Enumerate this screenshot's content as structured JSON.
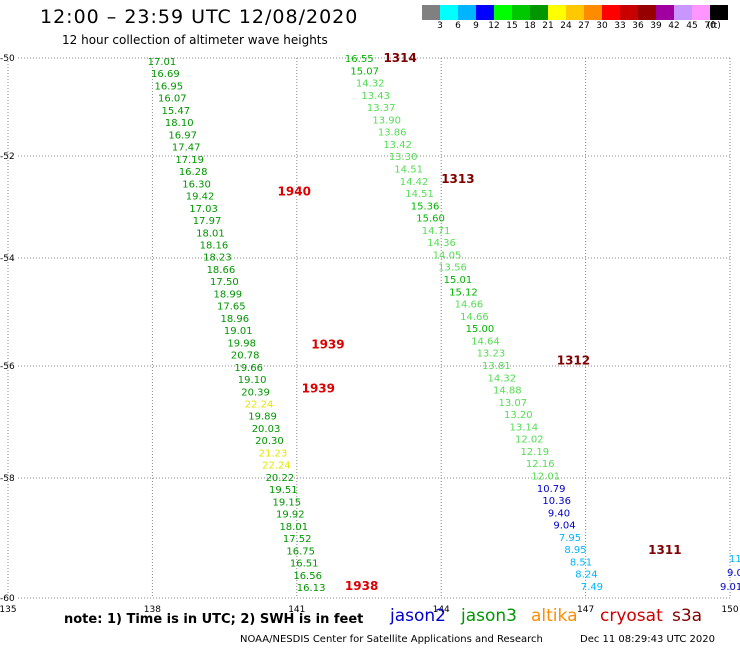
{
  "header": {
    "title": "12:00 – 23:59 UTC 12/08/2020",
    "subtitle": "12 hour collection of altimeter wave heights"
  },
  "scale": {
    "colors": [
      "#808080",
      "#00ffff",
      "#00b4ff",
      "#0000ff",
      "#00ff00",
      "#00c800",
      "#009600",
      "#ffff00",
      "#ffc800",
      "#ff8c00",
      "#ff0000",
      "#c80000",
      "#960000",
      "#a000a0",
      "#c896ff",
      "#ff96ff",
      "#000000"
    ],
    "labels": [
      "3",
      "6",
      "9",
      "12",
      "15",
      "18",
      "21",
      "24",
      "27",
      "30",
      "33",
      "36",
      "39",
      "42",
      "45",
      "70",
      "(ft)"
    ]
  },
  "axes": {
    "x_ticks": [
      "135",
      "138",
      "141",
      "144",
      "147",
      "150"
    ],
    "y_ticks": [
      "-50",
      "-52",
      "-54",
      "-56",
      "-58",
      "-60"
    ]
  },
  "chart_data": {
    "type": "scatter",
    "xlim": [
      135,
      150
    ],
    "ylim": [
      -60,
      -50
    ],
    "grid": true,
    "units": "ft",
    "tracks": [
      {
        "satellite": "jason3",
        "label_points": [
          {
            "text": "1940",
            "lon": 140.6,
            "lat": -52.7
          },
          {
            "text": "1939",
            "lon": 141.3,
            "lat": -55.6
          },
          {
            "text": "1939",
            "lon": 141.1,
            "lat": -56.4
          },
          {
            "text": "1938",
            "lon": 142.0,
            "lat": -59.8
          }
        ],
        "lon_start": 137.9,
        "lat_start": -50.05,
        "lon_end": 141.0,
        "lat_end": -59.8,
        "values": [
          "17.01",
          "16.69",
          "16.95",
          "16.07",
          "15.47",
          "18.10",
          "16.97",
          "17.47",
          "17.19",
          "16.28",
          "16.30",
          "19.42",
          "17.03",
          "17.97",
          "18.01",
          "18.16",
          "18.23",
          "18.66",
          "17.50",
          "18.99",
          "17.65",
          "18.96",
          "19.01",
          "19.98",
          "20.78",
          "19.66",
          "19.10",
          "20.39",
          "22.24",
          "19.89",
          "20.03",
          "20.30",
          "21.23",
          "22.24",
          "20.22",
          "19.51",
          "19.15",
          "19.92",
          "18.01",
          "17.52",
          "16.75",
          "16.51",
          "16.56",
          "16.13"
        ]
      },
      {
        "satellite": "jason3",
        "label_points": [
          {
            "text": "1314",
            "lon": 142.8,
            "lat": -50.0
          },
          {
            "text": "1313",
            "lon": 144.0,
            "lat": -52.45
          },
          {
            "text": "1312",
            "lon": 146.4,
            "lat": -55.9
          },
          {
            "text": "1311",
            "lon": 148.3,
            "lat": -59.2
          }
        ],
        "lon_start": 142.0,
        "lat_start": -50.0,
        "lon_end": 146.9,
        "lat_end": -59.7,
        "values": [
          "16.55",
          "15.07",
          "14.32",
          "13.43",
          "13.37",
          "13.90",
          "13.86",
          "13.42",
          "13.30",
          "14.51",
          "14.42",
          "14.51",
          "15.36",
          "15.60",
          "14.71",
          "14.36",
          "14.05",
          "13.56",
          "15.01",
          "15.12",
          "14.66",
          "14.66",
          "15.00",
          "14.64",
          "13.23",
          "13.81",
          "14.32",
          "14.88",
          "13.07",
          "13.20",
          "13.14",
          "12.02",
          "12.19",
          "12.16",
          "12.01",
          "10.79",
          "10.36",
          "9.40",
          "9.04",
          "7.95",
          "8.95",
          "8.51",
          "8.24",
          "7.49"
        ]
      },
      {
        "satellite": "jason3",
        "values": [
          "11",
          "9.0",
          "9.01"
        ]
      }
    ]
  },
  "legend": {
    "note": "note:  1) Time is in UTC;  2) SWH is in feet",
    "satellites": [
      {
        "name": "jason2",
        "color": "#0000cc"
      },
      {
        "name": "jason3",
        "color": "#009600"
      },
      {
        "name": "altika",
        "color": "#ff8c00"
      },
      {
        "name": "cryosat",
        "color": "#cc0000"
      },
      {
        "name": "s3a",
        "color": "#800000"
      }
    ]
  },
  "footer": {
    "credit": "NOAA/NESDIS Center for Satellite Applications and Research",
    "timestamp": "Dec 11 08:29:43 UTC 2020"
  }
}
